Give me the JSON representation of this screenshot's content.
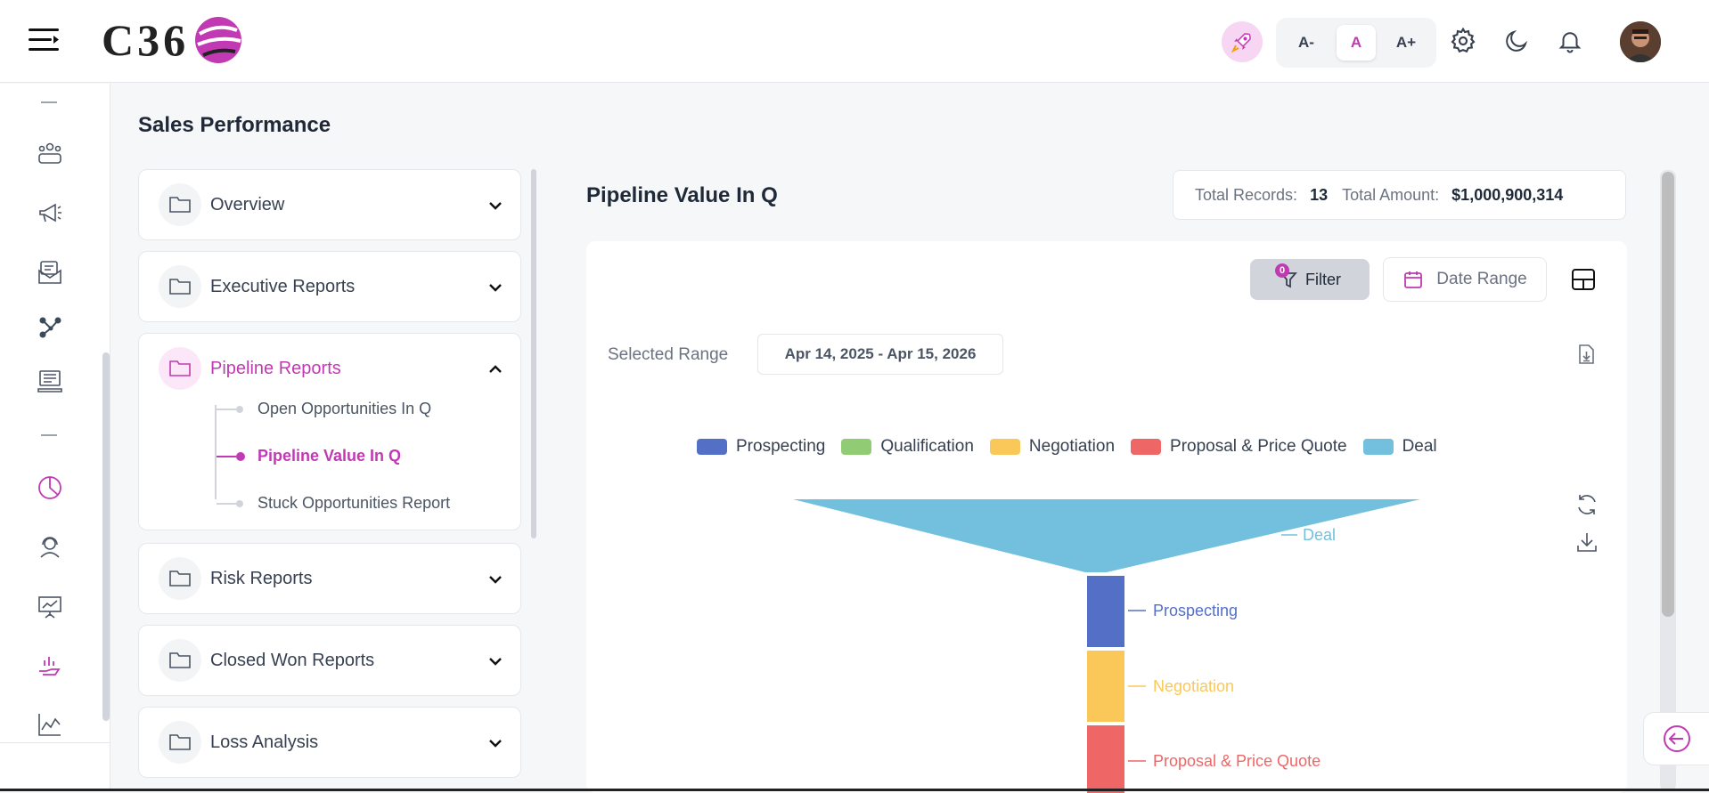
{
  "header": {
    "logo_text": "C36",
    "font_buttons": [
      "A-",
      "A",
      "A+"
    ]
  },
  "page": {
    "title": "Sales Performance"
  },
  "accordion": {
    "sections": [
      {
        "label": "Overview"
      },
      {
        "label": "Executive Reports"
      },
      {
        "label": "Pipeline Reports",
        "expanded": true,
        "items": [
          {
            "label": "Open Opportunities In Q"
          },
          {
            "label": "Pipeline Value In Q",
            "active": true
          },
          {
            "label": "Stuck Opportunities Report"
          }
        ]
      },
      {
        "label": "Risk Reports"
      },
      {
        "label": "Closed Won Reports"
      },
      {
        "label": "Loss Analysis"
      }
    ]
  },
  "report": {
    "title": "Pipeline Value In Q",
    "total_records_label": "Total Records:",
    "total_records_value": "13",
    "total_amount_label": "Total Amount:",
    "total_amount_value": "$1,000,900,314",
    "filter_label": "Filter",
    "filter_count": "0",
    "date_range_label": "Date Range",
    "selected_range_label": "Selected Range",
    "selected_range_value": "Apr 14, 2025 - Apr 15, 2026"
  },
  "chart_data": {
    "type": "funnel",
    "legend": [
      {
        "name": "Prospecting",
        "color": "#5470c6"
      },
      {
        "name": "Qualification",
        "color": "#91cc75"
      },
      {
        "name": "Negotiation",
        "color": "#fac858"
      },
      {
        "name": "Proposal & Price Quote",
        "color": "#ee6666"
      },
      {
        "name": "Deal",
        "color": "#73c0de"
      }
    ],
    "stages_visible": [
      {
        "name": "Deal",
        "color": "#73c0de"
      },
      {
        "name": "Prospecting",
        "color": "#5470c6"
      },
      {
        "name": "Negotiation",
        "color": "#fac858"
      },
      {
        "name": "Proposal & Price Quote",
        "color": "#ee6666"
      }
    ]
  }
}
